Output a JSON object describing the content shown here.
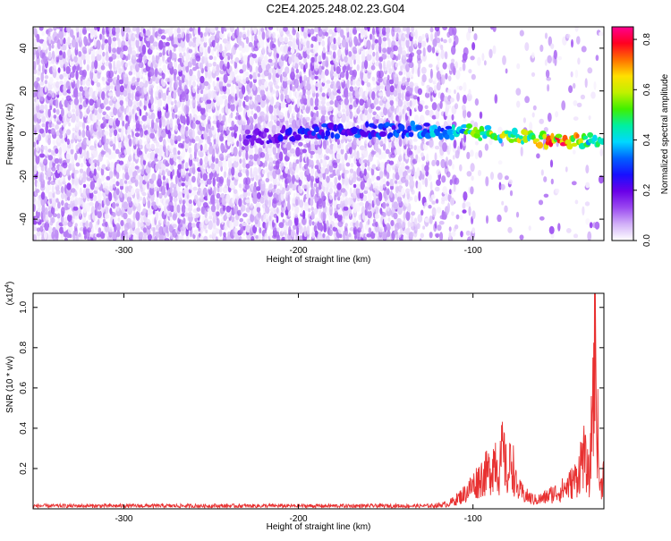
{
  "title": "C2E4.2025.248.02.23.G04",
  "chart_data": [
    {
      "type": "heatmap",
      "xlabel": "Height of straight line (km)",
      "ylabel": "Frequency (Hz)",
      "xlim": [
        -352,
        -25
      ],
      "ylim": [
        -50,
        50
      ],
      "x_ticks": [
        "-300",
        "-200",
        "-100"
      ],
      "y_ticks": [
        "40",
        "20",
        "0",
        "-20",
        "-40"
      ],
      "x_tick_values": [
        -300,
        -200,
        -100
      ],
      "y_tick_values": [
        40,
        20,
        0,
        -20,
        -40
      ],
      "colorbar": {
        "label": "Normalized spectral amplitude",
        "range": [
          0.0,
          0.85
        ],
        "ticks": [
          "0.0",
          "0.2",
          "0.4",
          "0.6",
          "0.8"
        ],
        "tick_values": [
          0.0,
          0.2,
          0.4,
          0.6,
          0.8
        ],
        "colormap": [
          "#ffffff",
          "#d2b0f8",
          "#9a49f0",
          "#6a00e8",
          "#1810ff",
          "#0060ff",
          "#00d8ff",
          "#00f0a0",
          "#40f000",
          "#c0f000",
          "#ffe000",
          "#ff7000",
          "#ff0020",
          "#ff0090"
        ]
      },
      "signal_track": [
        {
          "x": -230,
          "freq": -2,
          "amp": 0.22
        },
        {
          "x": -190,
          "freq": 1,
          "amp": 0.28
        },
        {
          "x": -130,
          "freq": 2,
          "amp": 0.35
        },
        {
          "x": -110,
          "freq": 1,
          "amp": 0.45
        },
        {
          "x": -90,
          "freq": 0,
          "amp": 0.6
        },
        {
          "x": -75,
          "freq": -1,
          "amp": 0.62
        },
        {
          "x": -60,
          "freq": -3,
          "amp": 0.7
        },
        {
          "x": -45,
          "freq": -3,
          "amp": 0.8
        },
        {
          "x": -32,
          "freq": -3,
          "amp": 0.5
        }
      ]
    },
    {
      "type": "line",
      "xlabel": "Height of straight line (km)",
      "ylabel": "SNR (10 * v/v)",
      "multiplier_label": "(x10",
      "multiplier_exp": "4",
      "xlim": [
        -352,
        -25
      ],
      "ylim": [
        0,
        1.07
      ],
      "x_ticks": [
        "-300",
        "-200",
        "-100"
      ],
      "y_ticks": [
        "1.0",
        "0.8",
        "0.6",
        "0.4",
        "0.2"
      ],
      "x_tick_values": [
        -300,
        -200,
        -100
      ],
      "y_tick_values": [
        1.0,
        0.8,
        0.6,
        0.4,
        0.2
      ],
      "color": "#e83030",
      "series": [
        {
          "x": [
            -352,
            -330,
            -300,
            -270,
            -240,
            -210,
            -180,
            -150,
            -125,
            -115,
            -110,
            -105,
            -100,
            -95,
            -90,
            -87,
            -85,
            -83,
            -80,
            -78,
            -75,
            -70,
            -65,
            -60,
            -55,
            -50,
            -45,
            -40,
            -37,
            -35,
            -33,
            -32,
            -31,
            -30,
            -29,
            -28,
            -27,
            -26,
            -25
          ],
          "y": [
            0.02,
            0.02,
            0.02,
            0.02,
            0.02,
            0.02,
            0.02,
            0.02,
            0.02,
            0.03,
            0.06,
            0.1,
            0.16,
            0.22,
            0.26,
            0.36,
            0.24,
            0.4,
            0.2,
            0.36,
            0.14,
            0.09,
            0.06,
            0.07,
            0.1,
            0.12,
            0.16,
            0.22,
            0.38,
            0.28,
            0.2,
            0.6,
            0.9,
            1.07,
            0.7,
            0.3,
            0.12,
            0.2,
            0.25
          ]
        }
      ]
    }
  ]
}
